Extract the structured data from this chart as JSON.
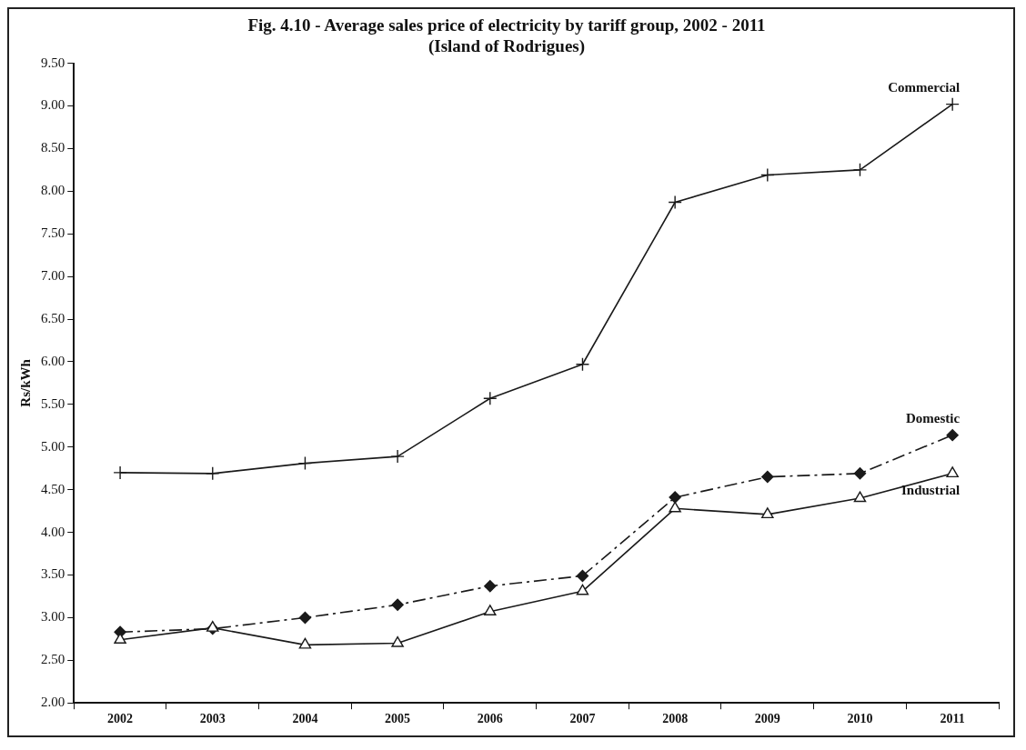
{
  "chart_data": {
    "type": "line",
    "title": "Fig. 4.10 - Average sales price of electricity by tariff group, 2002 - 2011",
    "subtitle": "(Island of Rodrigues)",
    "ylabel": "Rs/kWh",
    "categories": [
      "2002",
      "2003",
      "2004",
      "2005",
      "2006",
      "2007",
      "2008",
      "2009",
      "2010",
      "2011"
    ],
    "ylim": [
      2,
      9.5
    ],
    "yticks": [
      {
        "value": 2,
        "label": "2.00"
      },
      {
        "value": 2.5,
        "label": "2.50"
      },
      {
        "value": 3,
        "label": "3.00"
      },
      {
        "value": 3.5,
        "label": "3.50"
      },
      {
        "value": 4,
        "label": "4.00"
      },
      {
        "value": 4.5,
        "label": "4.50"
      },
      {
        "value": 5,
        "label": "5.00"
      },
      {
        "value": 5.5,
        "label": "5.50"
      },
      {
        "value": 6,
        "label": "6.00"
      },
      {
        "value": 6.5,
        "label": "6.50"
      },
      {
        "value": 7,
        "label": "7.00"
      },
      {
        "value": 7.5,
        "label": "7.50"
      },
      {
        "value": 8,
        "label": "8.00"
      },
      {
        "value": 8.5,
        "label": "8.50"
      },
      {
        "value": 9,
        "label": "9.00"
      },
      {
        "value": 9.5,
        "label": "9.50"
      }
    ],
    "grid": false,
    "legend": false,
    "series": [
      {
        "name": "Commercial",
        "color": "#1a1a1a",
        "marker": "cross",
        "line_style": "solid",
        "values": [
          4.7,
          4.69,
          4.81,
          4.89,
          5.57,
          5.97,
          7.87,
          8.19,
          8.25,
          9.02
        ]
      },
      {
        "name": "Domestic",
        "color": "#1a1a1a",
        "marker": "diamond",
        "line_style": "dashed",
        "values": [
          2.83,
          2.87,
          3.0,
          3.15,
          3.37,
          3.49,
          4.41,
          4.65,
          4.69,
          5.14
        ]
      },
      {
        "name": "Industrial",
        "color": "#1a1a1a",
        "marker": "triangle",
        "line_style": "solid",
        "values": [
          2.74,
          2.88,
          2.68,
          2.7,
          3.07,
          3.31,
          4.28,
          4.21,
          4.4,
          4.69
        ]
      }
    ]
  }
}
